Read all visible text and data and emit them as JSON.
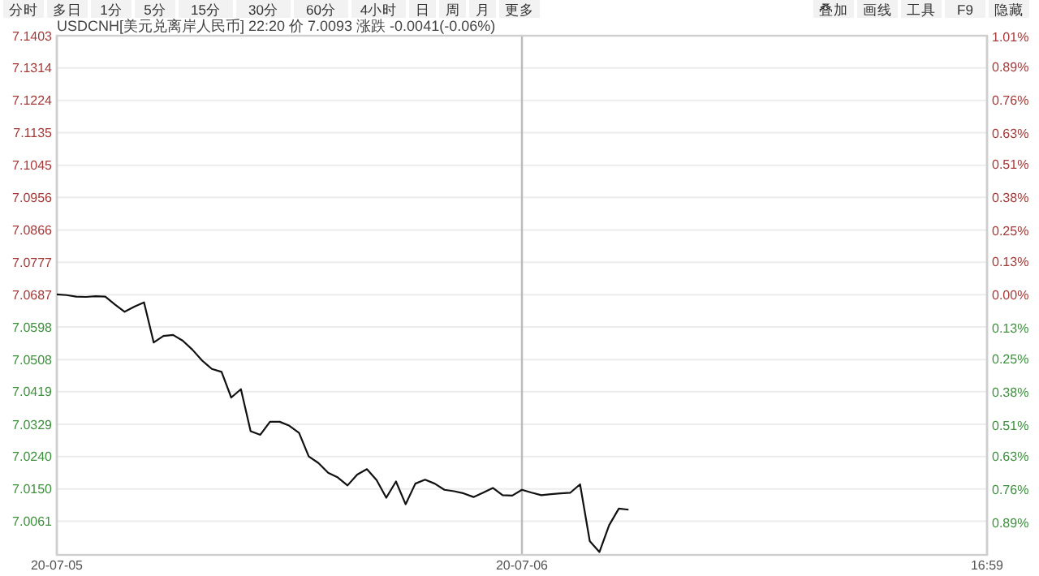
{
  "chart_data": {
    "type": "line",
    "title": "USDCNH[美元兑离岸人民币] 22:20 价 7.0093 涨跌 -0.0041(-0.06%)",
    "annotations": [
      "分时",
      "多日",
      "1分",
      "5分",
      "15分",
      "30分",
      "60分",
      "4小时",
      "日",
      "周",
      "月",
      "更多",
      "叠加",
      "画线",
      "工具",
      "F9",
      "隐藏"
    ],
    "categories": [
      "20-07-05",
      null,
      null,
      null,
      null,
      null,
      null,
      null,
      null,
      null,
      null,
      null,
      null,
      null,
      null,
      null,
      null,
      null,
      null,
      null,
      null,
      null,
      null,
      null,
      null,
      null,
      null,
      null,
      null,
      null,
      null,
      null,
      null,
      null,
      null,
      null,
      null,
      null,
      null,
      null,
      null,
      null,
      null,
      null,
      null,
      null,
      null,
      null,
      "20-07-06",
      null,
      null,
      null,
      null,
      null,
      null,
      null,
      null,
      null,
      null,
      null,
      null,
      null,
      null,
      null,
      null,
      null,
      null,
      null,
      null,
      null,
      null,
      null,
      null,
      null,
      null,
      null,
      null,
      null,
      null,
      null,
      null,
      null,
      null,
      null,
      null,
      null,
      null,
      null,
      null,
      null,
      null,
      null,
      null,
      null,
      null,
      null,
      "16:59"
    ],
    "series": [
      {
        "color": "#111111",
        "values": [
          7.0688,
          7.0686,
          7.0682,
          7.0681,
          7.0683,
          7.0682,
          7.066,
          7.064,
          7.0654,
          7.0666,
          7.0555,
          7.0573,
          7.0576,
          7.056,
          7.0535,
          7.0505,
          7.0482,
          7.0474,
          7.0403,
          7.0426,
          7.031,
          7.03,
          7.0336,
          7.0336,
          7.0325,
          7.0305,
          7.024,
          7.0222,
          7.0195,
          7.0182,
          7.016,
          7.019,
          7.0205,
          7.0175,
          7.0126,
          7.0171,
          7.0108,
          7.0165,
          7.0176,
          7.0165,
          7.0148,
          7.0144,
          7.0138,
          7.0128,
          7.014,
          7.0153,
          7.0133,
          7.0132,
          7.0148,
          7.014,
          7.0133,
          7.0136,
          7.0138,
          7.014,
          7.0163,
          7.0006,
          6.9976,
          7.005,
          7.0096,
          7.0093,
          null,
          null,
          null,
          null,
          null,
          null,
          null,
          null,
          null,
          null,
          null,
          null,
          null,
          null,
          null,
          null,
          null,
          null,
          null,
          null,
          null,
          null,
          null,
          null,
          null,
          null,
          null,
          null,
          null,
          null,
          null,
          null,
          null,
          null,
          null,
          null,
          null
        ]
      }
    ],
    "ylim": [
      6.9968,
      7.1403
    ],
    "yticks": [
      7.0061,
      {
        "value": 7.015,
        "label": "7.0150"
      },
      {
        "value": 7.024,
        "label": "7.0240"
      },
      7.0329,
      7.0419,
      7.0508,
      7.0598,
      7.0687,
      7.0777,
      7.0866,
      7.0956,
      7.1045,
      7.1135,
      7.1224,
      7.1314,
      7.1403
    ],
    "y2lim": [
      -1.017,
      1.013
    ],
    "y2ticks": [
      {
        "value": -0.89,
        "label": "0.89%"
      },
      {
        "value": -0.76,
        "label": "0.76%"
      },
      {
        "value": -0.63,
        "label": "0.63%"
      },
      {
        "value": -0.51,
        "label": "0.51%"
      },
      {
        "value": -0.38,
        "label": "0.38%"
      },
      {
        "value": -0.25,
        "label": "0.25%"
      },
      {
        "value": -0.13,
        "label": "0.13%"
      },
      {
        "value": 0,
        "label": "0.00%"
      },
      {
        "value": 0.13,
        "label": "0.13%"
      },
      {
        "value": 0.25,
        "label": "0.25%"
      },
      {
        "value": 0.38,
        "label": "0.38%"
      },
      {
        "value": 0.51,
        "label": "0.51%"
      },
      {
        "value": 0.63,
        "label": "0.63%"
      },
      {
        "value": 0.76,
        "label": "0.76%"
      },
      {
        "value": 0.89,
        "label": "0.89%"
      },
      {
        "value": 1.01,
        "label": "1.01%"
      }
    ],
    "grid": true,
    "marker": "none",
    "line_style": "solid"
  }
}
